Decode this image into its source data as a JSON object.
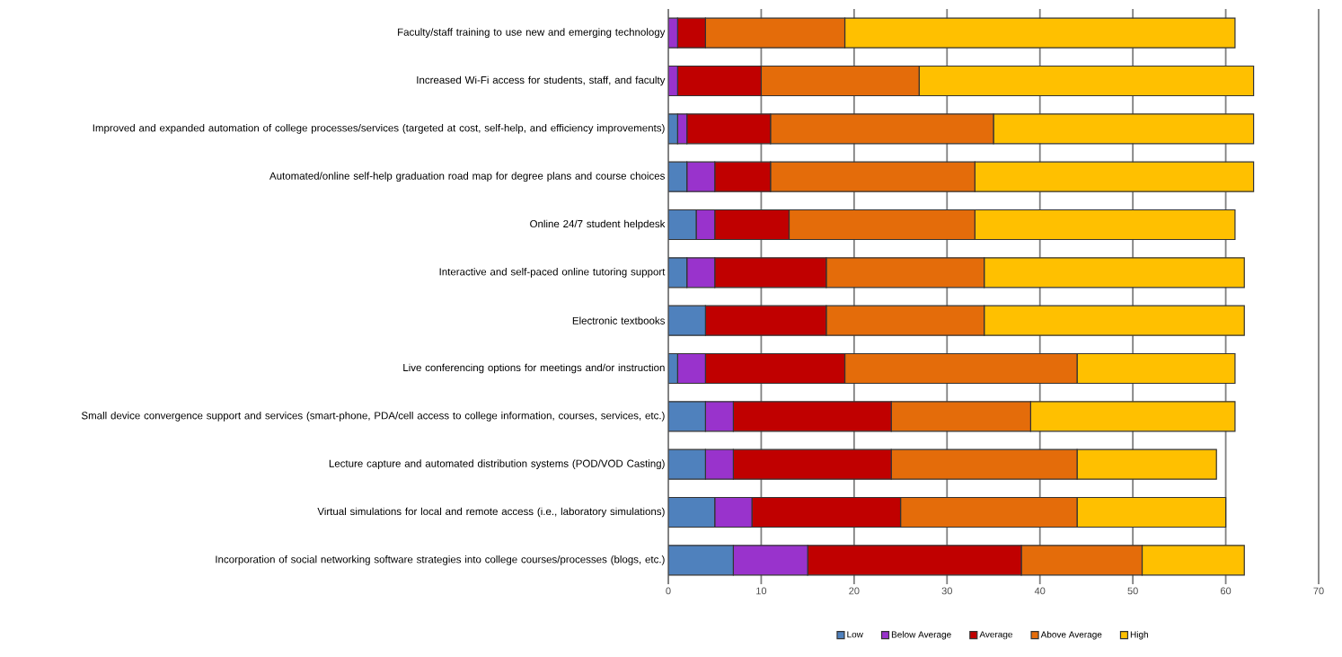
{
  "chart_data": {
    "type": "bar",
    "orientation": "horizontal",
    "stacked": true,
    "categories": [
      "Faculty/staff training to use new and emerging technology",
      "Increased Wi-Fi access for students,  staff, and faculty",
      "Improved and expanded automation of college processes/services  (targeted at cost, self-help, and efficiency improvements)",
      "Automated/online self-help graduation road map for degree plans and course choices",
      "Online 24/7 student helpdesk",
      "Interactive and self-paced online tutoring support",
      "Electronic textbooks",
      "Live conferencing options for meetings and/or instruction",
      "Small device convergence support and services  (smart-phone, PDA/cell access to college information, courses, services,  etc.)",
      "Lecture capture and automated distribution systems  (POD/VOD Casting)",
      "Virtual simulations  for local and remote access  (i.e., laboratory simulations)",
      "Incorporation of social networking software strategies into college courses/processes  (blogs, etc.)"
    ],
    "series": [
      {
        "name": "Low",
        "color": "#4f81bd",
        "values": [
          0,
          0,
          1,
          2,
          3,
          2,
          4,
          1,
          4,
          4,
          5,
          7
        ]
      },
      {
        "name": "Below Average",
        "color": "#9933cc",
        "values": [
          1,
          1,
          1,
          3,
          2,
          3,
          0,
          3,
          3,
          3,
          4,
          8
        ]
      },
      {
        "name": "Average",
        "color": "#c00000",
        "values": [
          3,
          9,
          9,
          6,
          8,
          12,
          13,
          15,
          17,
          17,
          16,
          23
        ]
      },
      {
        "name": "Above Average",
        "color": "#e46c0a",
        "values": [
          15,
          17,
          24,
          22,
          20,
          17,
          17,
          25,
          15,
          20,
          19,
          13
        ]
      },
      {
        "name": "High",
        "color": "#ffc000",
        "values": [
          42,
          36,
          28,
          30,
          28,
          28,
          28,
          17,
          22,
          15,
          16,
          11
        ]
      }
    ],
    "xlim": [
      0,
      70
    ],
    "xticks": [
      0,
      10,
      20,
      30,
      40,
      50,
      60,
      70
    ],
    "grid": "x",
    "legend": "bottom"
  }
}
